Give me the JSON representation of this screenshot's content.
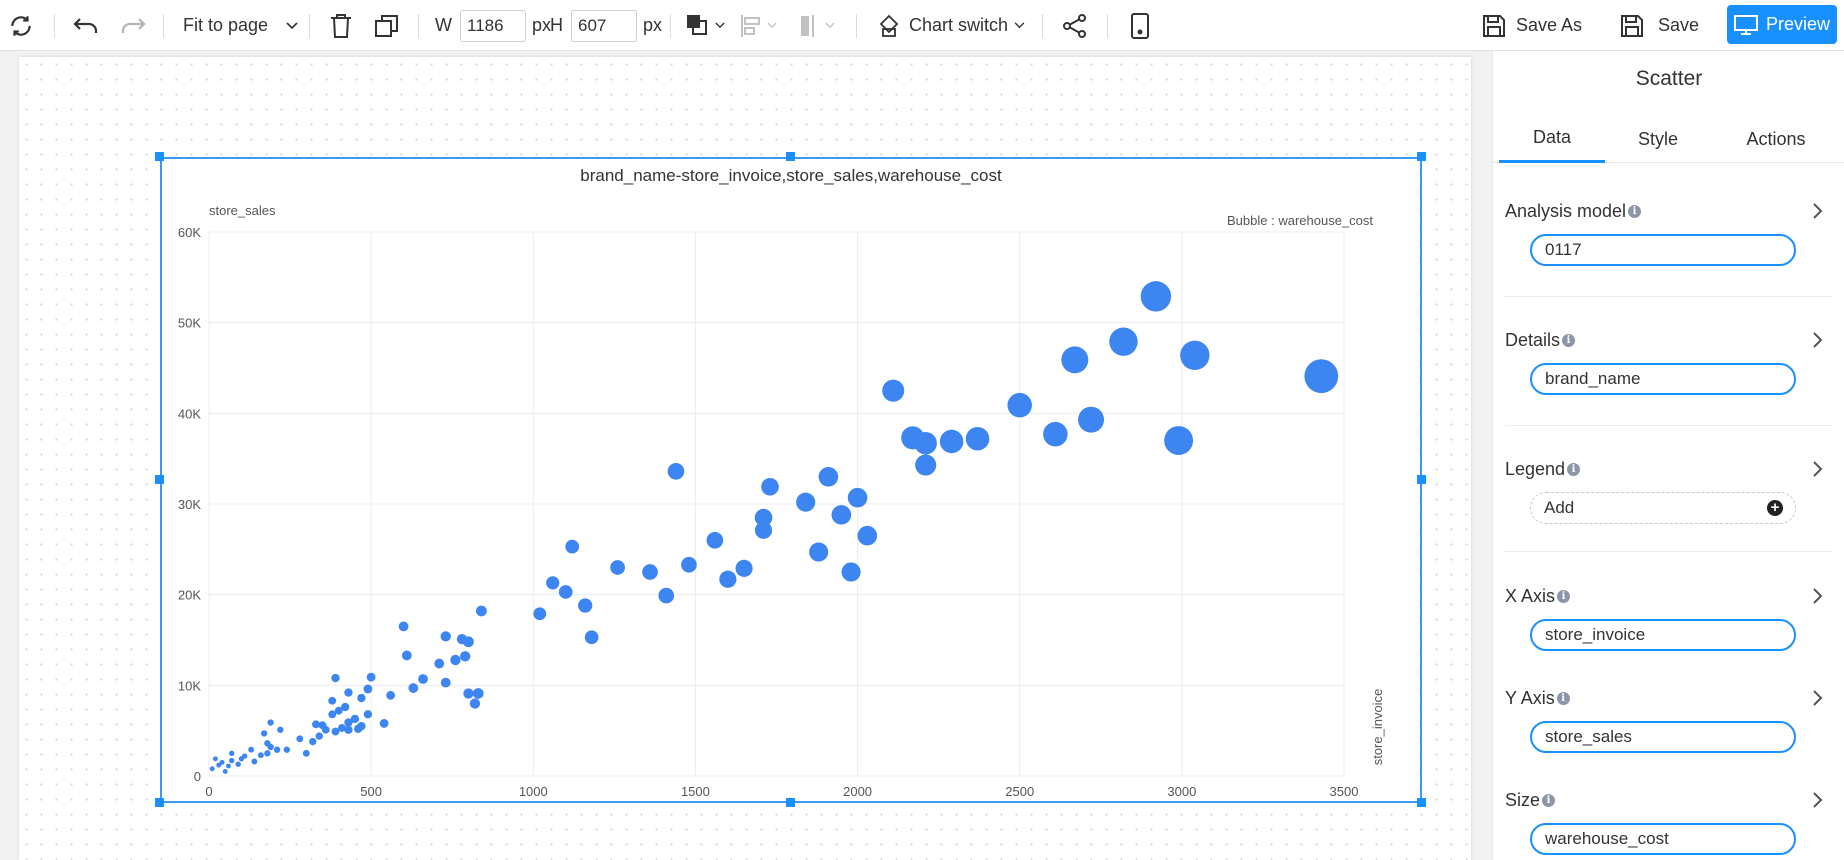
{
  "toolbar": {
    "fit_label": "Fit to page",
    "w_label": "W",
    "width_value": "1186",
    "h_label": "H",
    "height_value": "607",
    "unit": "px",
    "chart_switch_label": "Chart switch",
    "save_as_label": "Save As",
    "save_label": "Save",
    "preview_label": "Preview",
    "accent": "#1890ff"
  },
  "panel": {
    "title": "Scatter",
    "tabs": [
      {
        "label": "Data",
        "active": true
      },
      {
        "label": "Style",
        "active": false
      },
      {
        "label": "Actions",
        "active": false
      }
    ],
    "fields": [
      {
        "label": "Analysis model",
        "value": "0117"
      },
      {
        "label": "Details",
        "value": "brand_name"
      },
      {
        "label": "Legend",
        "value": "Add"
      },
      {
        "label": "X Axis",
        "value": "store_invoice"
      },
      {
        "label": "Y Axis",
        "value": "store_sales"
      },
      {
        "label": "Size",
        "value": "warehouse_cost"
      }
    ]
  },
  "chart_data": {
    "type": "scatter",
    "title": "brand_name-store_invoice,store_sales,warehouse_cost",
    "xlabel": "store_invoice",
    "ylabel": "store_sales",
    "size_label": "Bubble : warehouse_cost",
    "xlim": [
      0,
      3500
    ],
    "ylim": [
      0,
      60000
    ],
    "xticks": [
      "0",
      "500",
      "1000",
      "1500",
      "2000",
      "2500",
      "3000",
      "3500"
    ],
    "yticks": [
      "0",
      "10K",
      "20K",
      "30K",
      "40K",
      "50K",
      "60K"
    ],
    "grid": true,
    "color": "#3d85f0",
    "points": [
      {
        "x": 2920,
        "y": 52900,
        "s": 6.2
      },
      {
        "x": 3040,
        "y": 46400,
        "s": 6.0
      },
      {
        "x": 2820,
        "y": 47900,
        "s": 5.8
      },
      {
        "x": 2670,
        "y": 45900,
        "s": 5.5
      },
      {
        "x": 3430,
        "y": 44100,
        "s": 6.9
      },
      {
        "x": 2110,
        "y": 42500,
        "s": 4.5
      },
      {
        "x": 2500,
        "y": 40900,
        "s": 5.0
      },
      {
        "x": 2720,
        "y": 39300,
        "s": 5.3
      },
      {
        "x": 2990,
        "y": 37000,
        "s": 5.9
      },
      {
        "x": 2610,
        "y": 37700,
        "s": 5.0
      },
      {
        "x": 2170,
        "y": 37300,
        "s": 4.7
      },
      {
        "x": 2210,
        "y": 36700,
        "s": 4.6
      },
      {
        "x": 2290,
        "y": 36900,
        "s": 4.8
      },
      {
        "x": 2370,
        "y": 37200,
        "s": 4.8
      },
      {
        "x": 2210,
        "y": 34300,
        "s": 4.3
      },
      {
        "x": 1440,
        "y": 33600,
        "s": 3.4
      },
      {
        "x": 1730,
        "y": 31900,
        "s": 3.6
      },
      {
        "x": 1910,
        "y": 33000,
        "s": 4.0
      },
      {
        "x": 2000,
        "y": 30700,
        "s": 4.0
      },
      {
        "x": 1840,
        "y": 30200,
        "s": 3.9
      },
      {
        "x": 1950,
        "y": 28800,
        "s": 4.0
      },
      {
        "x": 1710,
        "y": 28500,
        "s": 3.6
      },
      {
        "x": 1710,
        "y": 27100,
        "s": 3.5
      },
      {
        "x": 2030,
        "y": 26500,
        "s": 4.0
      },
      {
        "x": 1560,
        "y": 26000,
        "s": 3.4
      },
      {
        "x": 1880,
        "y": 24700,
        "s": 3.9
      },
      {
        "x": 1120,
        "y": 25300,
        "s": 2.8
      },
      {
        "x": 1260,
        "y": 23000,
        "s": 3.0
      },
      {
        "x": 1360,
        "y": 22500,
        "s": 3.2
      },
      {
        "x": 1480,
        "y": 23300,
        "s": 3.2
      },
      {
        "x": 1650,
        "y": 22900,
        "s": 3.5
      },
      {
        "x": 1600,
        "y": 21700,
        "s": 3.5
      },
      {
        "x": 1980,
        "y": 22500,
        "s": 3.9
      },
      {
        "x": 1060,
        "y": 21300,
        "s": 2.7
      },
      {
        "x": 1100,
        "y": 20300,
        "s": 2.8
      },
      {
        "x": 1410,
        "y": 19900,
        "s": 3.2
      },
      {
        "x": 1160,
        "y": 18800,
        "s": 2.9
      },
      {
        "x": 1020,
        "y": 17900,
        "s": 2.6
      },
      {
        "x": 1180,
        "y": 15300,
        "s": 2.8
      },
      {
        "x": 840,
        "y": 18200,
        "s": 2.2
      },
      {
        "x": 600,
        "y": 16500,
        "s": 2.0
      },
      {
        "x": 730,
        "y": 15400,
        "s": 2.1
      },
      {
        "x": 780,
        "y": 15100,
        "s": 2.1
      },
      {
        "x": 800,
        "y": 14800,
        "s": 2.2
      },
      {
        "x": 610,
        "y": 13300,
        "s": 2.0
      },
      {
        "x": 760,
        "y": 12800,
        "s": 2.1
      },
      {
        "x": 790,
        "y": 13200,
        "s": 2.1
      },
      {
        "x": 710,
        "y": 12400,
        "s": 2.0
      },
      {
        "x": 660,
        "y": 10700,
        "s": 2.0
      },
      {
        "x": 730,
        "y": 10300,
        "s": 2.0
      },
      {
        "x": 500,
        "y": 10900,
        "s": 1.8
      },
      {
        "x": 490,
        "y": 9600,
        "s": 1.8
      },
      {
        "x": 560,
        "y": 8900,
        "s": 1.8
      },
      {
        "x": 630,
        "y": 9700,
        "s": 2.0
      },
      {
        "x": 800,
        "y": 9100,
        "s": 2.1
      },
      {
        "x": 830,
        "y": 9100,
        "s": 2.2
      },
      {
        "x": 820,
        "y": 8000,
        "s": 2.1
      },
      {
        "x": 390,
        "y": 10800,
        "s": 1.7
      },
      {
        "x": 430,
        "y": 9200,
        "s": 1.7
      },
      {
        "x": 470,
        "y": 8600,
        "s": 1.7
      },
      {
        "x": 380,
        "y": 8300,
        "s": 1.6
      },
      {
        "x": 400,
        "y": 7200,
        "s": 1.6
      },
      {
        "x": 380,
        "y": 6800,
        "s": 1.6
      },
      {
        "x": 420,
        "y": 7600,
        "s": 1.7
      },
      {
        "x": 450,
        "y": 6300,
        "s": 1.7
      },
      {
        "x": 490,
        "y": 6800,
        "s": 1.7
      },
      {
        "x": 540,
        "y": 5800,
        "s": 1.8
      },
      {
        "x": 470,
        "y": 5500,
        "s": 1.7
      },
      {
        "x": 430,
        "y": 5900,
        "s": 1.7
      },
      {
        "x": 410,
        "y": 5300,
        "s": 1.6
      },
      {
        "x": 460,
        "y": 5200,
        "s": 1.7
      },
      {
        "x": 430,
        "y": 5100,
        "s": 1.7
      },
      {
        "x": 390,
        "y": 4900,
        "s": 1.6
      },
      {
        "x": 350,
        "y": 5600,
        "s": 1.6
      },
      {
        "x": 330,
        "y": 5700,
        "s": 1.6
      },
      {
        "x": 360,
        "y": 5100,
        "s": 1.6
      },
      {
        "x": 340,
        "y": 4400,
        "s": 1.5
      },
      {
        "x": 320,
        "y": 3800,
        "s": 1.5
      },
      {
        "x": 280,
        "y": 4100,
        "s": 1.4
      },
      {
        "x": 300,
        "y": 2500,
        "s": 1.4
      },
      {
        "x": 240,
        "y": 2900,
        "s": 1.3
      },
      {
        "x": 220,
        "y": 5100,
        "s": 1.3
      },
      {
        "x": 190,
        "y": 5900,
        "s": 1.3
      },
      {
        "x": 170,
        "y": 4700,
        "s": 1.3
      },
      {
        "x": 180,
        "y": 3600,
        "s": 1.3
      },
      {
        "x": 190,
        "y": 3200,
        "s": 1.3
      },
      {
        "x": 180,
        "y": 2500,
        "s": 1.3
      },
      {
        "x": 160,
        "y": 2300,
        "s": 1.2
      },
      {
        "x": 130,
        "y": 2900,
        "s": 1.2
      },
      {
        "x": 140,
        "y": 1600,
        "s": 1.2
      },
      {
        "x": 100,
        "y": 1900,
        "s": 1.1
      },
      {
        "x": 90,
        "y": 1300,
        "s": 1.1
      },
      {
        "x": 70,
        "y": 2500,
        "s": 1.1
      },
      {
        "x": 70,
        "y": 1700,
        "s": 1.1
      },
      {
        "x": 60,
        "y": 1100,
        "s": 1.0
      },
      {
        "x": 50,
        "y": 500,
        "s": 1.0
      },
      {
        "x": 40,
        "y": 1500,
        "s": 1.0
      },
      {
        "x": 30,
        "y": 1200,
        "s": 1.0
      },
      {
        "x": 20,
        "y": 1900,
        "s": 1.0
      },
      {
        "x": 10,
        "y": 800,
        "s": 1.0
      },
      {
        "x": 110,
        "y": 2200,
        "s": 1.1
      },
      {
        "x": 210,
        "y": 2900,
        "s": 1.3
      }
    ]
  }
}
